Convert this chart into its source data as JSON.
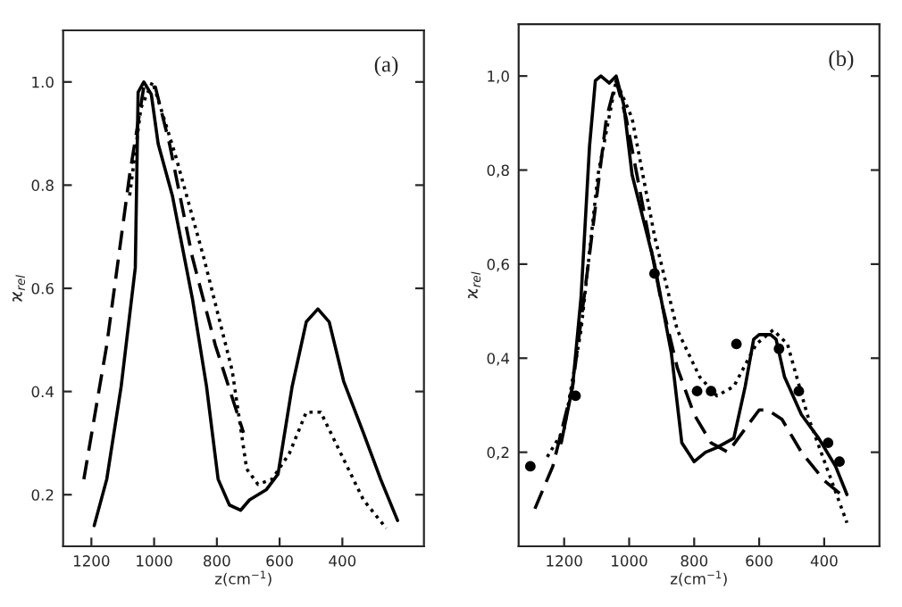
{
  "chart_data": [
    {
      "type": "line",
      "xlabel": "z(cm$^{−1}$)",
      "ylabel": "ϰ$_{rel}$",
      "annotations": [
        "(a)"
      ],
      "xlim": [
        1290,
        140
      ],
      "ylim": [
        0.1,
        1.1
      ],
      "xticks": [
        1200,
        1000,
        800,
        600,
        400
      ],
      "yticks": [
        0.2,
        0.4,
        0.6,
        0.8,
        {
          "value": 1.0,
          "label": "1.0"
        }
      ],
      "grid": false,
      "legend": false,
      "series": [
        {
          "color": "#000000",
          "line_style": "solid",
          "x": [
            1191,
            1151,
            1105,
            1060,
            1051,
            1033,
            1009,
            987,
            942,
            878,
            833,
            796,
            760,
            724,
            696,
            642,
            605,
            560,
            515,
            478,
            442,
            396,
            333,
            278,
            224
          ],
          "values": [
            0.14,
            0.23,
            0.41,
            0.64,
            0.98,
            1.0,
            0.976,
            0.88,
            0.78,
            0.58,
            0.41,
            0.23,
            0.18,
            0.17,
            0.19,
            0.21,
            0.24,
            0.41,
            0.535,
            0.56,
            0.535,
            0.42,
            0.32,
            0.23,
            0.15
          ]
        },
        {
          "color": "#000000",
          "line_style": "dashed",
          "x": [
            1224,
            1151,
            1078,
            1033,
            996,
            951,
            878,
            805,
            715
          ],
          "values": [
            0.23,
            0.49,
            0.82,
            0.99,
            0.99,
            0.88,
            0.66,
            0.49,
            0.32
          ]
        },
        {
          "color": "#000000",
          "line_style": "dotted",
          "x": [
            1078,
            1042,
            1005,
            933,
            842,
            751,
            705,
            669,
            624,
            569,
            515,
            469,
            405,
            333,
            260
          ],
          "values": [
            0.78,
            0.95,
            1.0,
            0.86,
            0.66,
            0.44,
            0.25,
            0.22,
            0.23,
            0.28,
            0.36,
            0.36,
            0.28,
            0.19,
            0.135
          ]
        }
      ]
    },
    {
      "type": "line",
      "xlabel": "z(cm$^{−1}$)",
      "ylabel": "ϰ$_{rel}$",
      "annotations": [
        "(b)"
      ],
      "xlim": [
        1340,
        230
      ],
      "ylim": [
        0.0,
        1.11
      ],
      "xticks": [
        1200,
        1000,
        800,
        600,
        400
      ],
      "yticks": [
        {
          "value": 0.2,
          "label": "0,2"
        },
        {
          "value": 0.4,
          "label": "0,4"
        },
        {
          "value": 0.6,
          "label": "0,6"
        },
        {
          "value": 0.8,
          "label": "0,8"
        },
        {
          "value": 1.0,
          "label": "1,0"
        }
      ],
      "grid": false,
      "legend": false,
      "series": [
        {
          "color": "#000000",
          "line_style": "solid",
          "x": [
            1209,
            1174,
            1148,
            1122,
            1104,
            1087,
            1061,
            1040,
            1017,
            991,
            922,
            870,
            838,
            800,
            765,
            730,
            678,
            643,
            617,
            600,
            565,
            548,
            522,
            470,
            417,
            365,
            330
          ],
          "values": [
            0.22,
            0.34,
            0.53,
            0.85,
            0.99,
            1.0,
            0.985,
            1.0,
            0.94,
            0.79,
            0.6,
            0.41,
            0.22,
            0.18,
            0.2,
            0.21,
            0.23,
            0.34,
            0.44,
            0.45,
            0.45,
            0.44,
            0.36,
            0.28,
            0.23,
            0.17,
            0.11
          ]
        },
        {
          "color": "#000000",
          "line_style": "dashed",
          "x": [
            1290,
            1235,
            1174,
            1122,
            1070,
            1040,
            1009,
            957,
            904,
            852,
            800,
            748,
            696,
            643,
            600,
            574,
            530,
            470,
            400,
            348
          ],
          "values": [
            0.08,
            0.17,
            0.34,
            0.62,
            0.91,
            0.99,
            0.91,
            0.72,
            0.53,
            0.38,
            0.28,
            0.22,
            0.2,
            0.25,
            0.29,
            0.29,
            0.27,
            0.2,
            0.14,
            0.11
          ]
        },
        {
          "color": "#000000",
          "line_style": "dotted",
          "x": [
            1252,
            1200,
            1148,
            1096,
            1040,
            991,
            922,
            852,
            783,
            730,
            678,
            609,
            557,
            513,
            452,
            383,
            330
          ],
          "values": [
            0.19,
            0.25,
            0.46,
            0.79,
            0.99,
            0.91,
            0.66,
            0.46,
            0.36,
            0.32,
            0.34,
            0.43,
            0.46,
            0.43,
            0.28,
            0.15,
            0.05
          ]
        },
        {
          "type": "scatter",
          "marker": "circle",
          "color": "#000000",
          "x": [
            1304,
            1165,
            922,
            791,
            748,
            670,
            539,
            478,
            388,
            353
          ],
          "values": [
            0.17,
            0.32,
            0.58,
            0.33,
            0.33,
            0.43,
            0.42,
            0.33,
            0.22,
            0.18
          ]
        }
      ]
    }
  ]
}
